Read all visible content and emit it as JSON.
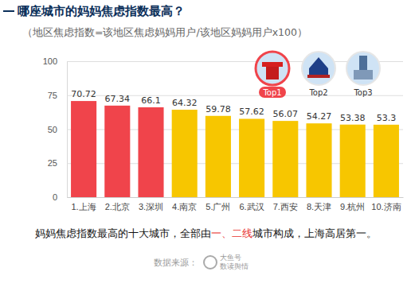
{
  "chart_data": {
    "type": "bar",
    "title": "哪座城市的妈妈焦虑指数最高？",
    "subtitle": "（地区焦虑指数=该地区焦虑妈妈用户/该地区妈妈用户x100）",
    "categories": [
      "1.上海",
      "2.北京",
      "3.深圳",
      "4.南京",
      "5.广州",
      "6.武汉",
      "7.西安",
      "8.天津",
      "9.杭州",
      "10.济南"
    ],
    "values": [
      70.72,
      67.34,
      66.1,
      64.32,
      59.78,
      57.62,
      56.07,
      54.27,
      53.38,
      53.3
    ],
    "colors": [
      "#f0444b",
      "#f0444b",
      "#f0444b",
      "#f7c600",
      "#f7c600",
      "#f7c600",
      "#f7c600",
      "#f7c600",
      "#f7c600",
      "#f7c600"
    ],
    "ylim": [
      0,
      100
    ],
    "yticks": [
      0,
      25,
      50,
      75,
      100
    ],
    "grid": true,
    "data_labels": true,
    "annotations": [
      "Top1",
      "Top2",
      "Top3"
    ],
    "caption": [
      "妈妈焦虑指数最高的十大城市，全部由",
      "一、二线",
      "城市构成，上海高居第一。"
    ],
    "source": "数据来源：",
    "logo": [
      "大鱼号",
      "数读舆情"
    ]
  }
}
